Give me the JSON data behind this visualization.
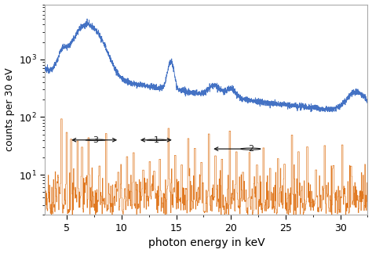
{
  "title": "",
  "xlabel": "photon energy in keV",
  "ylabel": "counts per 30 eV",
  "xlim": [
    3.0,
    32.5
  ],
  "ylim": [
    2.0,
    9000
  ],
  "blue_color": "#4472c4",
  "orange_color": "#e07820",
  "annotation_color": "#1a1a1a",
  "background_color": "#ffffff",
  "border_color": "#aaaaaa",
  "xticks": [
    5,
    10,
    15,
    20,
    25,
    30
  ],
  "yticks": [
    10,
    100,
    1000
  ],
  "figsize": [
    4.74,
    3.23
  ],
  "dpi": 100
}
